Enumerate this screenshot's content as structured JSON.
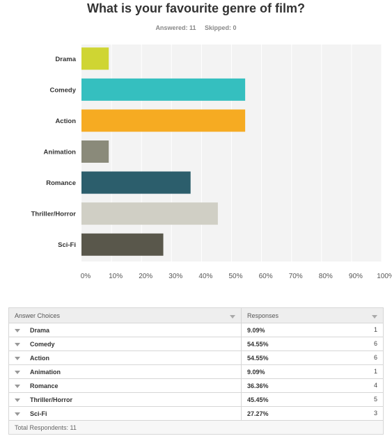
{
  "question": {
    "title": "What is your favourite genre of film?",
    "answered_label": "Answered:",
    "answered_value": "11",
    "skipped_label": "Skipped:",
    "skipped_value": "0"
  },
  "chart_data": {
    "type": "bar",
    "orientation": "horizontal",
    "categories": [
      "Drama",
      "Comedy",
      "Action",
      "Animation",
      "Romance",
      "Thriller/Horror",
      "Sci-Fi"
    ],
    "values": [
      9.09,
      54.55,
      54.55,
      9.09,
      36.36,
      45.45,
      27.27
    ],
    "colors": [
      "#cfd533",
      "#35bfbf",
      "#f6ab22",
      "#8a8a7a",
      "#2c5e6c",
      "#d0cfc5",
      "#59574b"
    ],
    "xlim": [
      0,
      100
    ],
    "x_ticks": [
      "0%",
      "10%",
      "20%",
      "30%",
      "40%",
      "50%",
      "60%",
      "70%",
      "80%",
      "90%",
      "100%"
    ],
    "grid": true,
    "plot_background": "#f3f3f3"
  },
  "table": {
    "headers": [
      "Answer Choices",
      "Responses"
    ],
    "rows": [
      {
        "choice": "Drama",
        "percent": "9.09%",
        "count": "1"
      },
      {
        "choice": "Comedy",
        "percent": "54.55%",
        "count": "6"
      },
      {
        "choice": "Action",
        "percent": "54.55%",
        "count": "6"
      },
      {
        "choice": "Animation",
        "percent": "9.09%",
        "count": "1"
      },
      {
        "choice": "Romance",
        "percent": "36.36%",
        "count": "4"
      },
      {
        "choice": "Thriller/Horror",
        "percent": "45.45%",
        "count": "5"
      },
      {
        "choice": "Sci-Fi",
        "percent": "27.27%",
        "count": "3"
      }
    ],
    "footer": "Total Respondents: 11"
  }
}
